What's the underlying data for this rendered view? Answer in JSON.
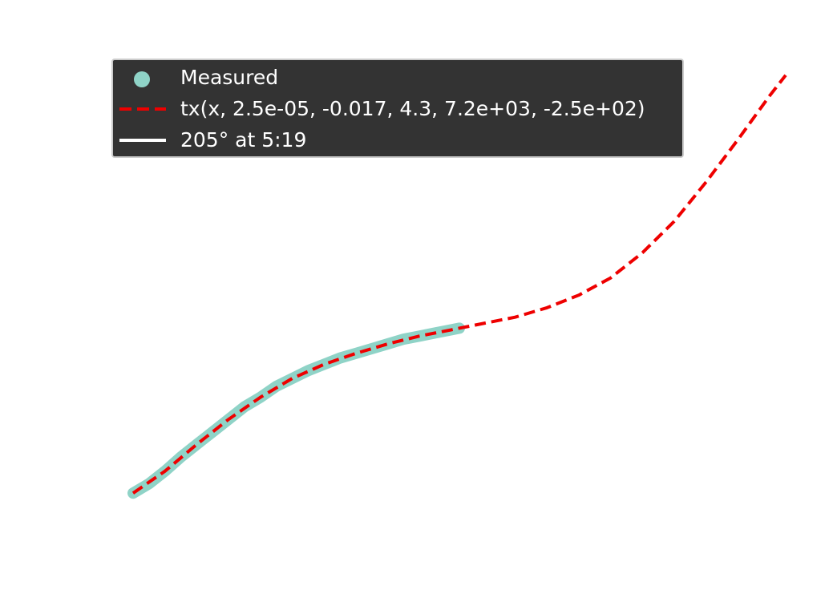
{
  "colors": {
    "measured": "#8fd3c7",
    "fit": "#ee0000",
    "highlight": "#ffffff",
    "legend_bg": "#333333",
    "legend_border": "#cccccc",
    "legend_text": "#ffffff"
  },
  "chart_data": {
    "type": "line",
    "title": "",
    "xlabel": "",
    "ylabel": "",
    "grid": false,
    "axes_visible": false,
    "legend_placement": "top-left",
    "xlim": [
      0,
      410
    ],
    "ylim": [
      -30,
      270
    ],
    "legend": [
      {
        "label": "Measured",
        "key": "dot",
        "color": "#8fd3c7"
      },
      {
        "label": "tx(x, 2.5e-05, -0.017, 4.3, 7.2e+03, -2.5e+02)",
        "key": "dashed",
        "color": "#ee0000"
      },
      {
        "label": "205° at 5:19",
        "key": "solid",
        "color": "#ffffff"
      }
    ],
    "series": [
      {
        "name": "Measured",
        "style": "thick",
        "x": [
          0,
          10,
          20,
          30,
          40,
          50,
          60,
          70,
          80,
          90,
          100,
          110,
          120,
          130,
          140,
          150,
          160,
          170,
          180,
          190,
          200,
          205
        ],
        "y": [
          0,
          6,
          14,
          23,
          31,
          39,
          47,
          55,
          61,
          68,
          73,
          78,
          82,
          86,
          89,
          92,
          95,
          98,
          100,
          102,
          104,
          105
        ]
      },
      {
        "name": "tx(x, 2.5e-05, -0.017, 4.3, 7.2e+03, -2.5e+02)",
        "style": "dashed",
        "x": [
          0,
          20,
          40,
          60,
          80,
          100,
          120,
          140,
          160,
          180,
          200,
          220,
          240,
          260,
          280,
          300,
          320,
          340,
          360,
          380,
          400,
          410
        ],
        "y": [
          0,
          14,
          31,
          47,
          61,
          73,
          82,
          89,
          95,
          100,
          104,
          108,
          112,
          118,
          126,
          137,
          153,
          173,
          198,
          225,
          253,
          266
        ]
      },
      {
        "name": "205° at 5:19",
        "style": "solid",
        "x": [],
        "y": []
      }
    ]
  }
}
